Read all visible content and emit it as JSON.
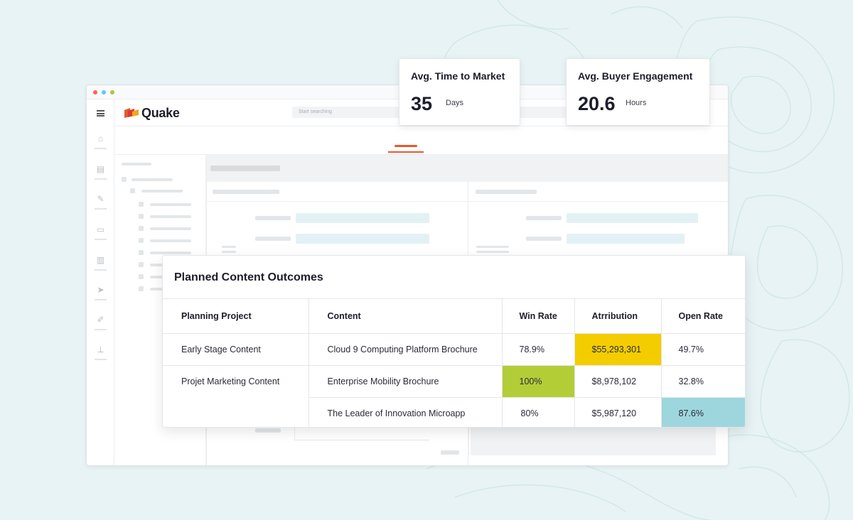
{
  "colors": {
    "background": "#e7f3f4",
    "brand_accent": "#e8582a",
    "highlight_yellow": "#f4cd00",
    "highlight_green": "#b3cd37",
    "highlight_teal": "#9ed6de"
  },
  "app": {
    "logo_text": "Quake",
    "search_placeholder": "Start searching"
  },
  "metrics": [
    {
      "title": "Avg. Time to Market",
      "value": "35",
      "unit": "Days"
    },
    {
      "title": "Avg. Buyer Engagement",
      "value": "20.6",
      "unit": "Hours"
    }
  ],
  "outcomes": {
    "title": "Planned Content Outcomes",
    "columns": [
      "Planning Project",
      "Content",
      "Win Rate",
      "Atrribution",
      "Open Rate"
    ],
    "rows": [
      {
        "project": "Early Stage Content",
        "content": "Cloud 9 Computing Platform Brochure",
        "win_rate": "78.9%",
        "attribution": "$55,293,301",
        "open_rate": "49.7%",
        "highlight": "attribution-yellow"
      },
      {
        "project": "Projet Marketing Content",
        "content": "Enterprise Mobility Brochure",
        "win_rate": "100%",
        "attribution": "$8,978,102",
        "open_rate": "32.8%",
        "highlight": "win_rate-green"
      },
      {
        "project": "",
        "content": "The Leader of Innovation Microapp",
        "win_rate": "80%",
        "attribution": "$5,987,120",
        "open_rate": "87.6%",
        "highlight": "open_rate-teal"
      }
    ]
  }
}
